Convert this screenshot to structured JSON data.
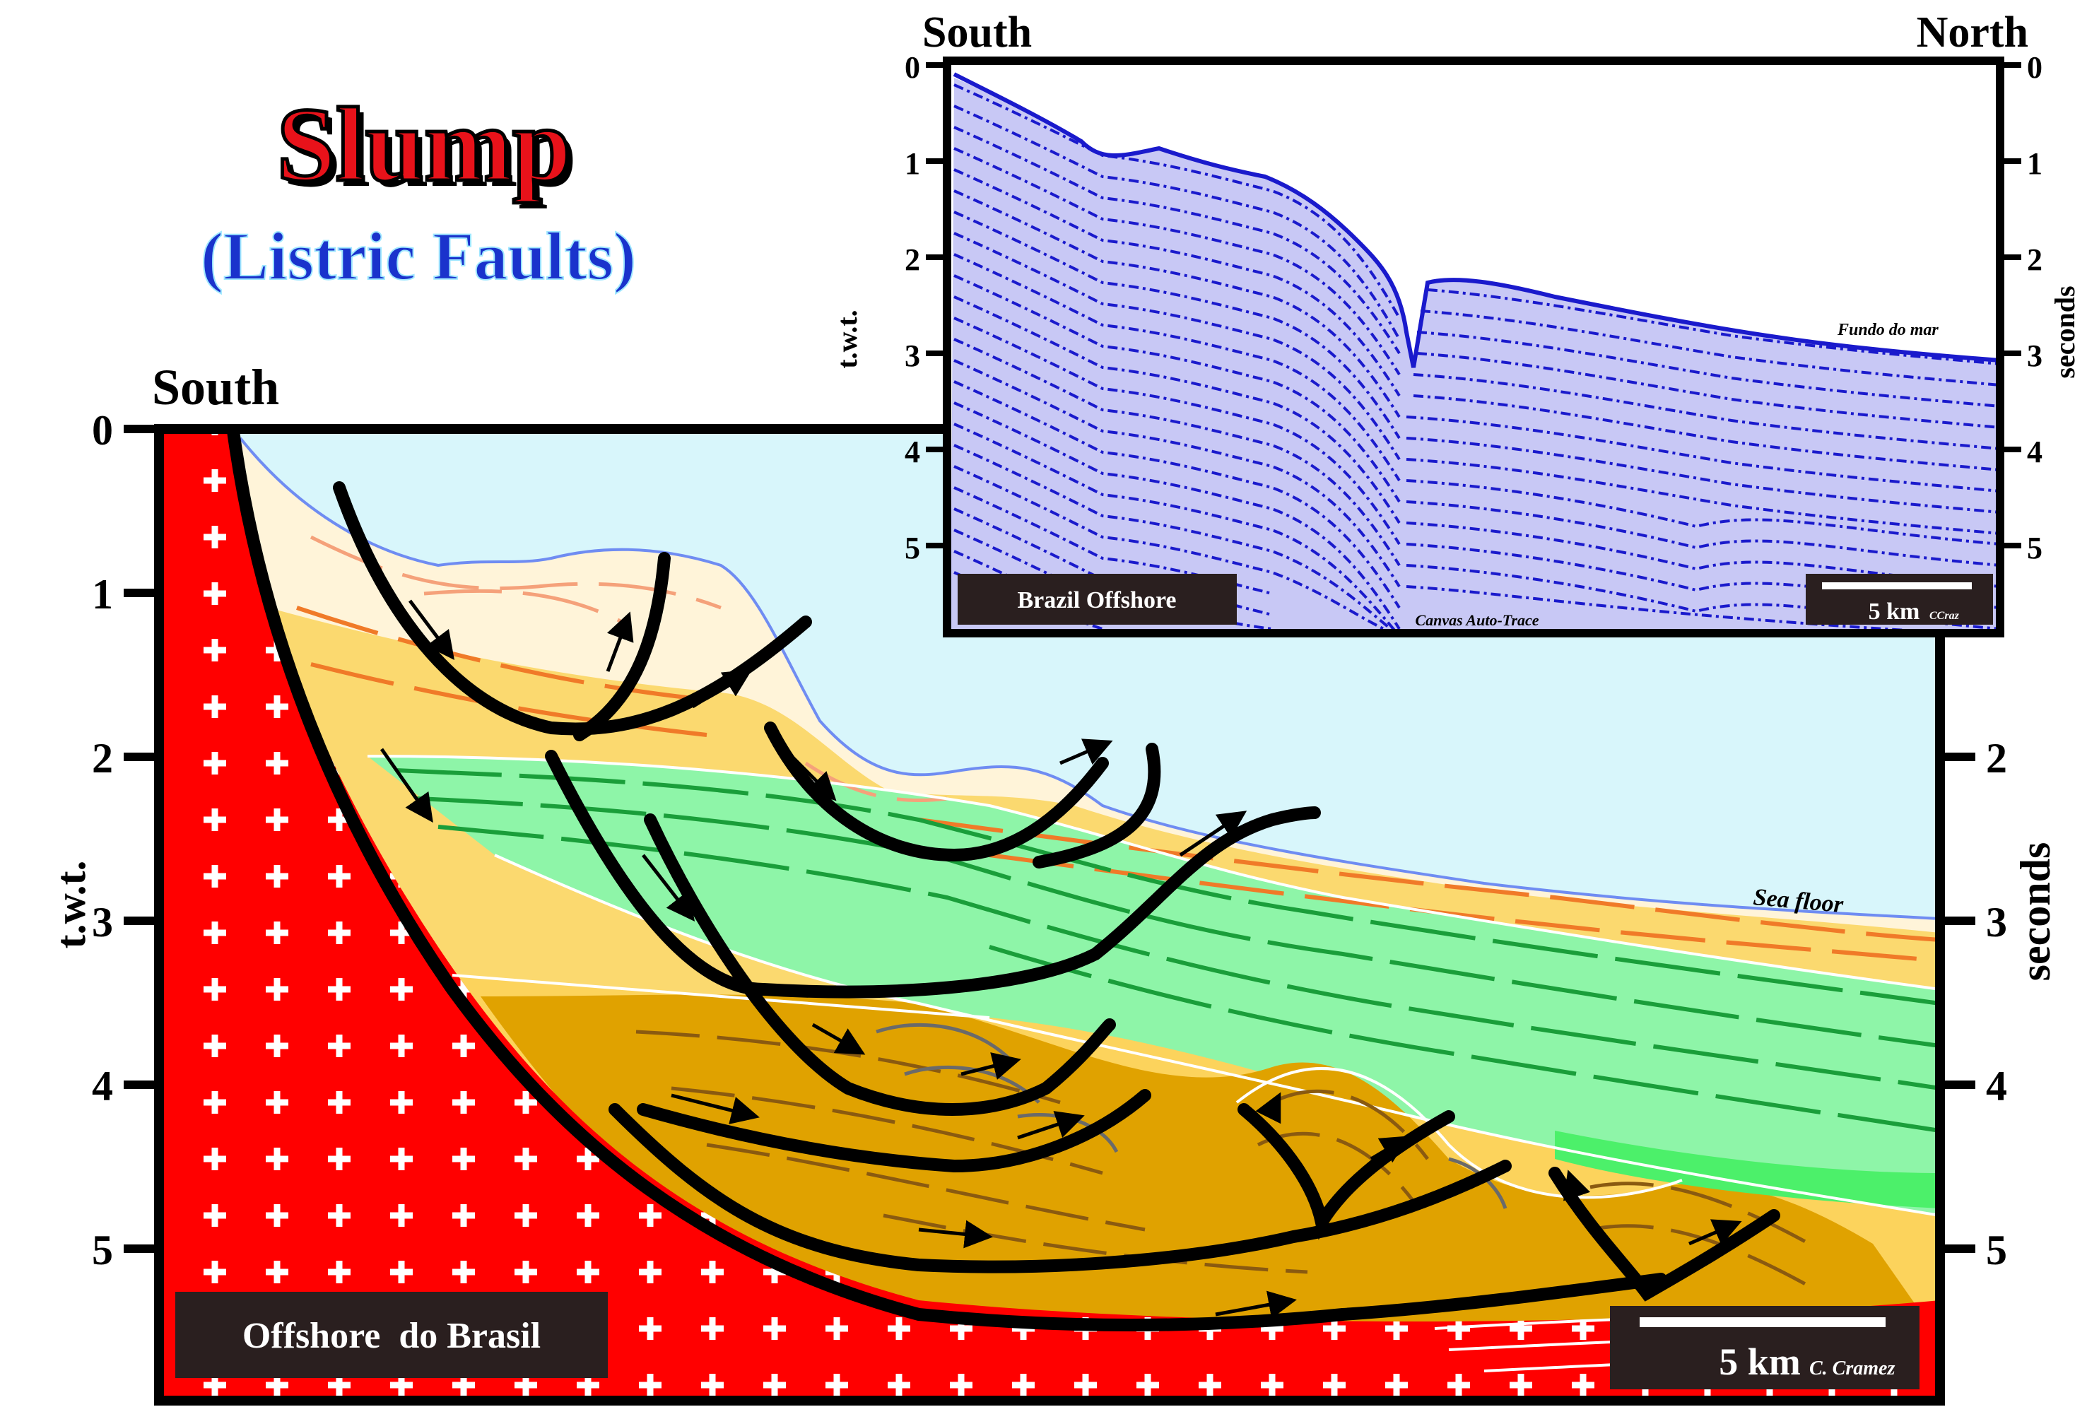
{
  "title": {
    "main": "Slump",
    "sub": "(Listric Faults)"
  },
  "colors": {
    "title_red": "#e8121a",
    "subtitle_blue": "#1a33cc",
    "basement": "#ff0000",
    "sea": "#d8f6fb",
    "green_layer": "#8ef5a8",
    "light_yellow": "#fbd96f",
    "ochre": "#e0a200",
    "pale": "#fff4d9",
    "seismic_blue": "#1a1acc",
    "frame": "#000000",
    "label_box": "#2a1f1f"
  },
  "cross_section": {
    "left_heading": "South",
    "axis_left_label": "t.w.t.",
    "axis_right_label": "seconds",
    "left_ticks": [
      "0",
      "1",
      "2",
      "3",
      "4",
      "5"
    ],
    "right_ticks": [
      "2",
      "3",
      "4",
      "5"
    ],
    "sea_floor_label": "Sea floor",
    "location_label": "Offshore  do Brasil",
    "scale_label": "5 km",
    "credit": "C. Cramez"
  },
  "seismic_inset": {
    "left_heading": "South",
    "right_heading": "North",
    "axis_left_label": "t.w.t.",
    "axis_right_label": "seconds",
    "left_ticks": [
      "0",
      "1",
      "2",
      "3",
      "4",
      "5"
    ],
    "right_ticks": [
      "0",
      "1",
      "2",
      "3",
      "4",
      "5"
    ],
    "seafloor_label": "Fundo do mar",
    "location_label": "Brazil Offshore",
    "software_label": "Canvas Auto-Trace",
    "scale_label": "5 km",
    "credit": "CCraz"
  }
}
